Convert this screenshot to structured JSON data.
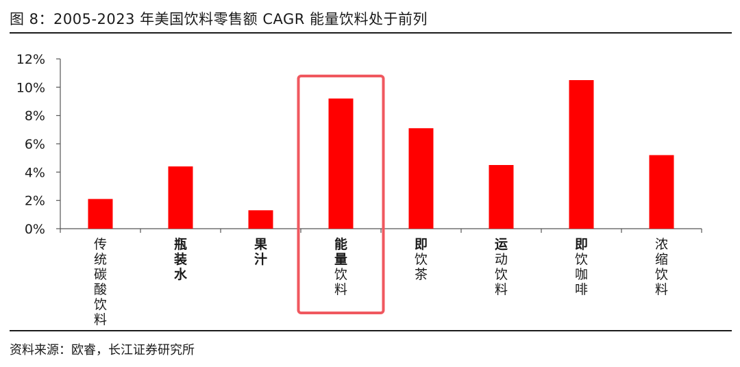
{
  "figure": {
    "title": "图 8：2005-2023 年美国饮料零售额 CAGR 能量饮料处于前列",
    "source": "资料来源：欧睿，长江证券研究所"
  },
  "chart_data": {
    "type": "bar",
    "categories": [
      "传统碳酸饮料",
      "瓶装水",
      "果汁",
      "能量饮料",
      "即饮茶",
      "运动饮料",
      "即饮咖啡",
      "浓缩饮料"
    ],
    "category_label_lines": [
      [
        {
          "t": "传",
          "b": false
        },
        {
          "t": "统",
          "b": false
        },
        {
          "t": "碳",
          "b": false
        },
        {
          "t": "酸",
          "b": false
        },
        {
          "t": "饮",
          "b": false
        },
        {
          "t": "料",
          "b": false
        }
      ],
      [
        {
          "t": "瓶",
          "b": true
        },
        {
          "t": "装",
          "b": true
        },
        {
          "t": "水",
          "b": true
        }
      ],
      [
        {
          "t": "果",
          "b": true
        },
        {
          "t": "汁",
          "b": true
        }
      ],
      [
        {
          "t": "能",
          "b": true
        },
        {
          "t": "量",
          "b": true
        },
        {
          "t": "饮",
          "b": false
        },
        {
          "t": "料",
          "b": false
        }
      ],
      [
        {
          "t": "即",
          "b": true
        },
        {
          "t": "饮",
          "b": false
        },
        {
          "t": "茶",
          "b": false
        }
      ],
      [
        {
          "t": "运",
          "b": true
        },
        {
          "t": "动",
          "b": false
        },
        {
          "t": "饮",
          "b": false
        },
        {
          "t": "料",
          "b": false
        }
      ],
      [
        {
          "t": "即",
          "b": true
        },
        {
          "t": "饮",
          "b": false
        },
        {
          "t": "咖",
          "b": false
        },
        {
          "t": "啡",
          "b": false
        }
      ],
      [
        {
          "t": "浓",
          "b": false
        },
        {
          "t": "缩",
          "b": false
        },
        {
          "t": "饮",
          "b": false
        },
        {
          "t": "料",
          "b": false
        }
      ]
    ],
    "values": [
      2.1,
      4.4,
      1.3,
      9.2,
      7.1,
      4.5,
      10.5,
      5.2
    ],
    "ylim": [
      0,
      12
    ],
    "yticks": [
      0,
      2,
      4,
      6,
      8,
      10,
      12
    ],
    "ytick_labels": [
      "0%",
      "2%",
      "4%",
      "6%",
      "8%",
      "10%",
      "12%"
    ],
    "xlabel": "",
    "ylabel": "",
    "grid": false,
    "highlight_category": "能量饮料",
    "colors": {
      "bar": "#ff0000",
      "highlight_box": "#f0585f",
      "axis": "#555555"
    }
  }
}
